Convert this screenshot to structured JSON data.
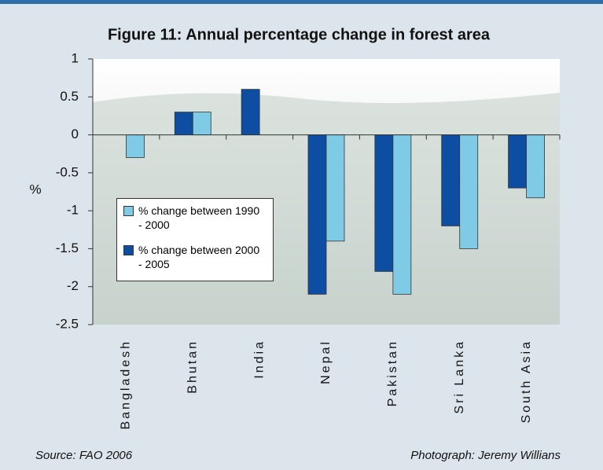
{
  "chart_data": {
    "type": "bar",
    "title": "Figure 11: Annual percentage change in forest area",
    "y_label": "%",
    "categories": [
      "Bangladesh",
      "Bhutan",
      "India",
      "Nepal",
      "Pakistan",
      "Sri Lanka",
      "South Asia"
    ],
    "series": [
      {
        "name": "% change between 2000 - 2005",
        "color": "#0d4ea3",
        "values": [
          0,
          0.3,
          0.6,
          -2.1,
          -1.8,
          -1.2,
          -0.7
        ]
      },
      {
        "name": "% change between 1990 - 2000",
        "color": "#7fcbe6",
        "values": [
          -0.3,
          0.3,
          0,
          -1.4,
          -2.1,
          -1.5,
          -0.83
        ]
      }
    ],
    "legend_order": [
      1,
      0
    ],
    "ylim": [
      -2.5,
      1
    ],
    "yticks": [
      1,
      0.5,
      0,
      -0.5,
      -1,
      -1.5,
      -2,
      -2.5
    ],
    "grid": false,
    "source": "Source: FAO 2006",
    "photo_credit": "Photograph: Jeremy Willians"
  }
}
